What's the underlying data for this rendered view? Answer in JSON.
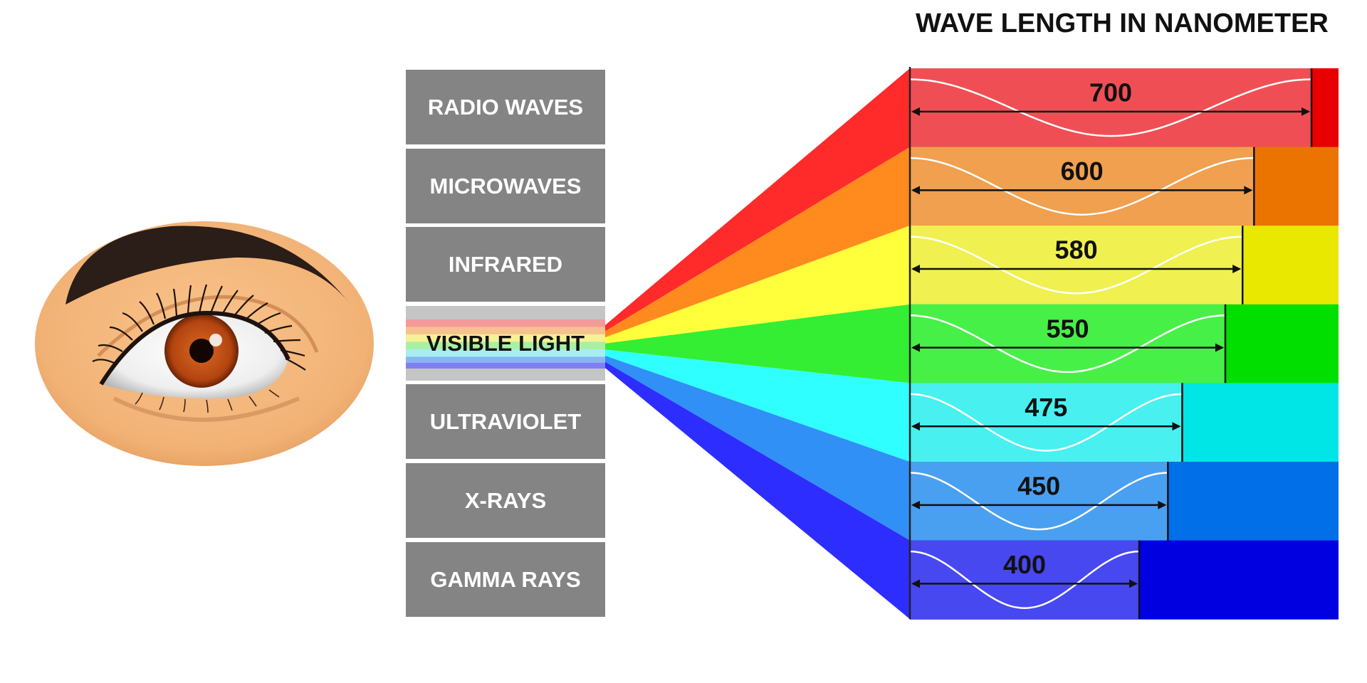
{
  "title": "WAVE LENGTH IN NANOMETER",
  "bands": [
    {
      "label": "RADIO WAVES"
    },
    {
      "label": "MICROWAVES"
    },
    {
      "label": "INFRARED"
    },
    {
      "label": "VISIBLE LIGHT"
    },
    {
      "label": "ULTRAVIOLET"
    },
    {
      "label": "X-RAYS"
    },
    {
      "label": "GAMMA RAYS"
    }
  ],
  "wavelengths": [
    {
      "value": "700",
      "nm": 700,
      "color": "#ef4f54",
      "beam_color": "#ff2a2a",
      "tip_color": "#e80000"
    },
    {
      "value": "600",
      "nm": 600,
      "color": "#f0a04f",
      "beam_color": "#ff8a1e",
      "tip_color": "#eb7400"
    },
    {
      "value": "580",
      "nm": 580,
      "color": "#f0f050",
      "beam_color": "#ffff3c",
      "tip_color": "#e8e800"
    },
    {
      "value": "550",
      "nm": 550,
      "color": "#47f047",
      "beam_color": "#33ee33",
      "tip_color": "#00df00"
    },
    {
      "value": "475",
      "nm": 475,
      "color": "#48f0f0",
      "beam_color": "#30ffff",
      "tip_color": "#00e6e6"
    },
    {
      "value": "450",
      "nm": 450,
      "color": "#4aa0f0",
      "beam_color": "#3090f5",
      "tip_color": "#006fe8"
    },
    {
      "value": "400",
      "nm": 400,
      "color": "#4848f0",
      "beam_color": "#2d2dff",
      "tip_color": "#0000e0"
    }
  ]
}
